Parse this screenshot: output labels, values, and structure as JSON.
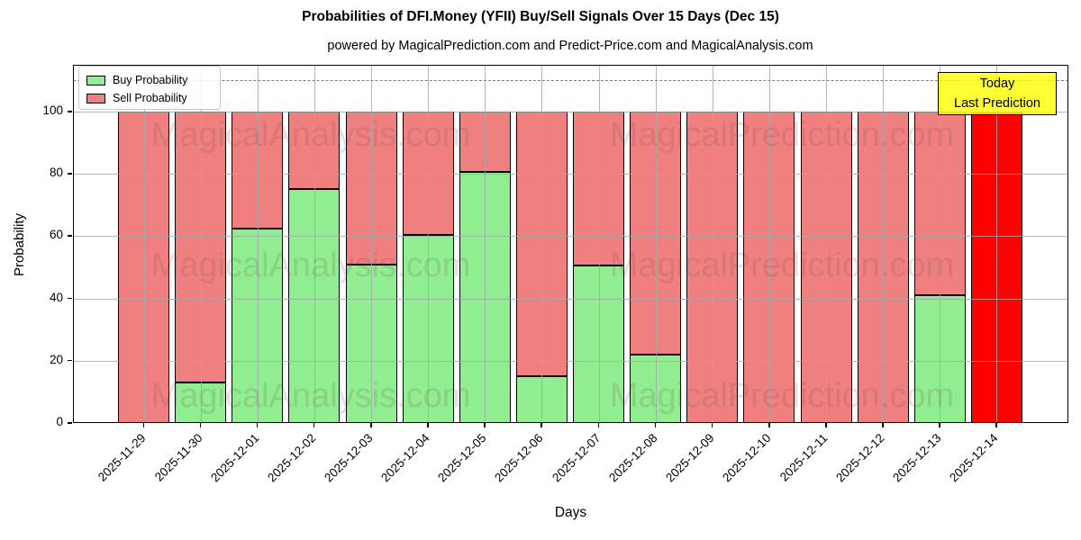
{
  "header": {
    "title": "Probabilities of DFI.Money (YFII) Buy/Sell Signals Over 15 Days (Dec 15)",
    "subtitle": "powered by MagicalPrediction.com and Predict-Price.com and MagicalAnalysis.com"
  },
  "legend": {
    "items": [
      {
        "label": "Buy Probability",
        "color": "#90EE90"
      },
      {
        "label": "Sell Probability",
        "color": "#F08080"
      }
    ]
  },
  "annotation": {
    "line1": "Today",
    "line2": "Last Prediction",
    "bg_color": "#FFFF00"
  },
  "watermarks": {
    "left": "MagicalAnalysis.com",
    "right": "MagicalPrediction.com"
  },
  "chart_data": {
    "type": "bar",
    "stacked": true,
    "title": "Probabilities of DFI.Money (YFII) Buy/Sell Signals Over 15 Days (Dec 15)",
    "xlabel": "Days",
    "ylabel": "Probability",
    "categories": [
      "2025-11-29",
      "2025-11-30",
      "2025-12-01",
      "2025-12-02",
      "2025-12-03",
      "2025-12-04",
      "2025-12-05",
      "2025-12-06",
      "2025-12-07",
      "2025-12-08",
      "2025-12-09",
      "2025-12-10",
      "2025-12-11",
      "2025-12-12",
      "2025-12-13",
      "2025-12-14"
    ],
    "series": [
      {
        "name": "Buy Probability",
        "color": "#90EE90",
        "values": [
          0,
          13,
          62.5,
          75,
          51,
          60.5,
          80.5,
          15,
          50.5,
          22,
          0,
          0,
          0,
          0,
          41,
          0
        ]
      },
      {
        "name": "Sell Probability",
        "color": "#F08080",
        "values": [
          100,
          87,
          37.5,
          25,
          49,
          39.5,
          19.5,
          85,
          49.5,
          78,
          100,
          100,
          100,
          100,
          59,
          100
        ]
      }
    ],
    "today_bar": {
      "category": "2025-12-14",
      "color": "#FF0000",
      "total": 100
    },
    "ylim": [
      0,
      115
    ],
    "yticks": [
      0,
      20,
      40,
      60,
      80,
      100
    ],
    "dashed_line_y": 110,
    "grid": true,
    "legend_position": "upper-left"
  }
}
